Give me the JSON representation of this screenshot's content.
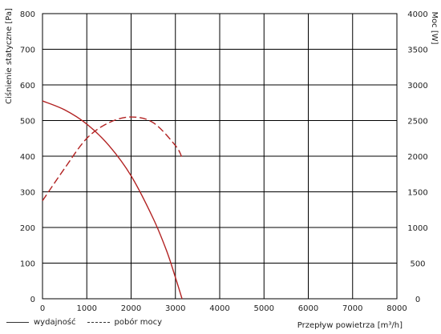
{
  "chart_data": {
    "type": "line",
    "title": "",
    "xlabel": "Przepływ powietrza [m³/h]",
    "ylabel_left": "Ciśnienie statyczne [Pa]",
    "ylabel_right": "Moc [W]",
    "xlim": [
      0,
      8000
    ],
    "ylim_left": [
      0,
      800
    ],
    "ylim_right": [
      0,
      4000
    ],
    "x_ticks": [
      "0",
      "1000",
      "2000",
      "3000",
      "4000",
      "5000",
      "6000",
      "7000",
      "8000"
    ],
    "y_ticks_left": [
      "0",
      "100",
      "200",
      "300",
      "400",
      "500",
      "600",
      "700",
      "800"
    ],
    "y_ticks_right": [
      "0",
      "500",
      "1000",
      "1500",
      "2000",
      "2500",
      "3000",
      "3500",
      "4000"
    ],
    "grid": true,
    "line_color": "#b22222",
    "series": [
      {
        "name": "wydajność",
        "axis": "left",
        "style": "solid",
        "x": [
          0,
          500,
          1000,
          1500,
          2000,
          2500,
          2800,
          3000,
          3150
        ],
        "y": [
          555,
          530,
          490,
          430,
          345,
          225,
          135,
          60,
          0
        ]
      },
      {
        "name": "pobór mocy",
        "axis": "right",
        "style": "dashed",
        "x": [
          0,
          500,
          1000,
          1500,
          2000,
          2500,
          3000,
          3150
        ],
        "y": [
          1375,
          1830,
          2250,
          2470,
          2550,
          2470,
          2150,
          1980
        ]
      }
    ]
  },
  "legend": {
    "solid_label": "wydajność",
    "dashed_label": "pobór mocy"
  }
}
